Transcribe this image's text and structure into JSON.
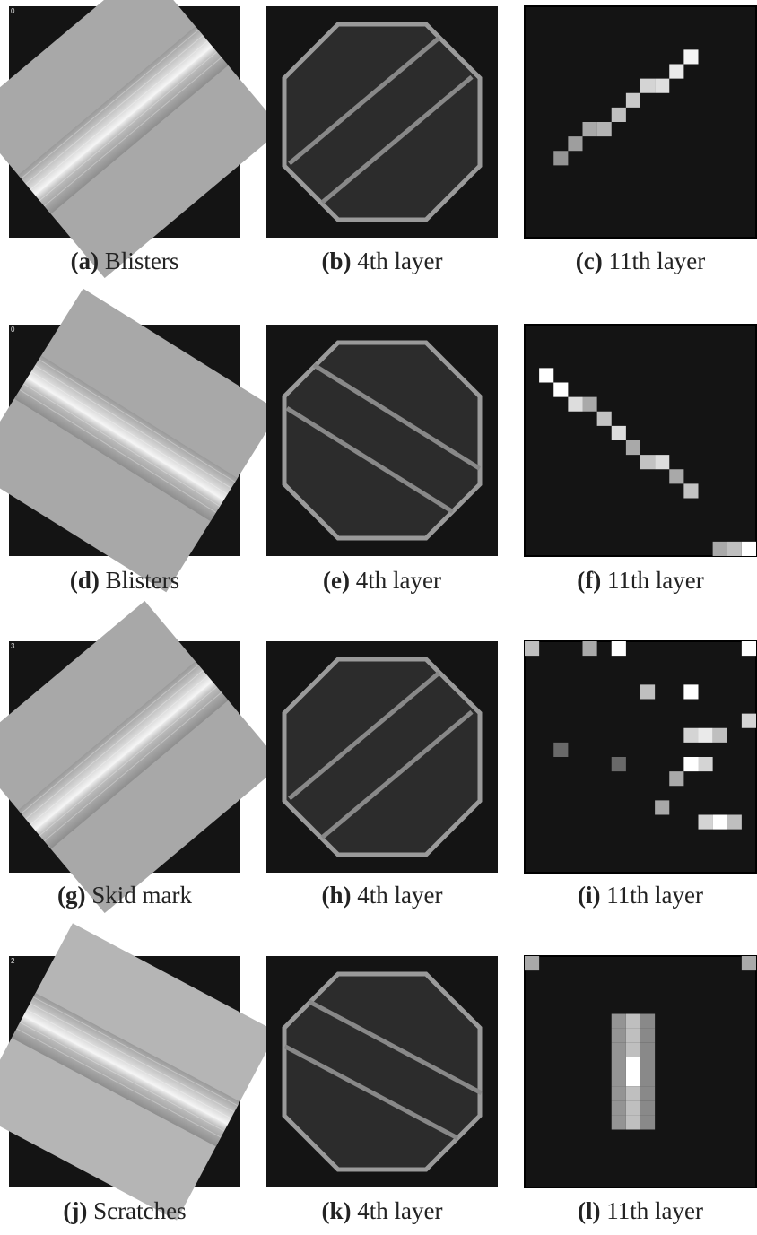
{
  "figure": {
    "panels": [
      {
        "label": "(a)",
        "caption": "Blisters",
        "corner": "0"
      },
      {
        "label": "(b)",
        "caption": "4th layer"
      },
      {
        "label": "(c)",
        "caption": "11th layer"
      },
      {
        "label": "(d)",
        "caption": "Blisters",
        "corner": "0"
      },
      {
        "label": "(e)",
        "caption": "4th layer"
      },
      {
        "label": "(f)",
        "caption": "11th layer"
      },
      {
        "label": "(g)",
        "caption": "Skid mark",
        "corner": "3"
      },
      {
        "label": "(h)",
        "caption": "4th layer"
      },
      {
        "label": "(i)",
        "caption": "11th layer"
      },
      {
        "label": "(j)",
        "caption": "Scratches",
        "corner": "2"
      },
      {
        "label": "(k)",
        "caption": "4th layer"
      },
      {
        "label": "(l)",
        "caption": "11th layer"
      }
    ]
  }
}
